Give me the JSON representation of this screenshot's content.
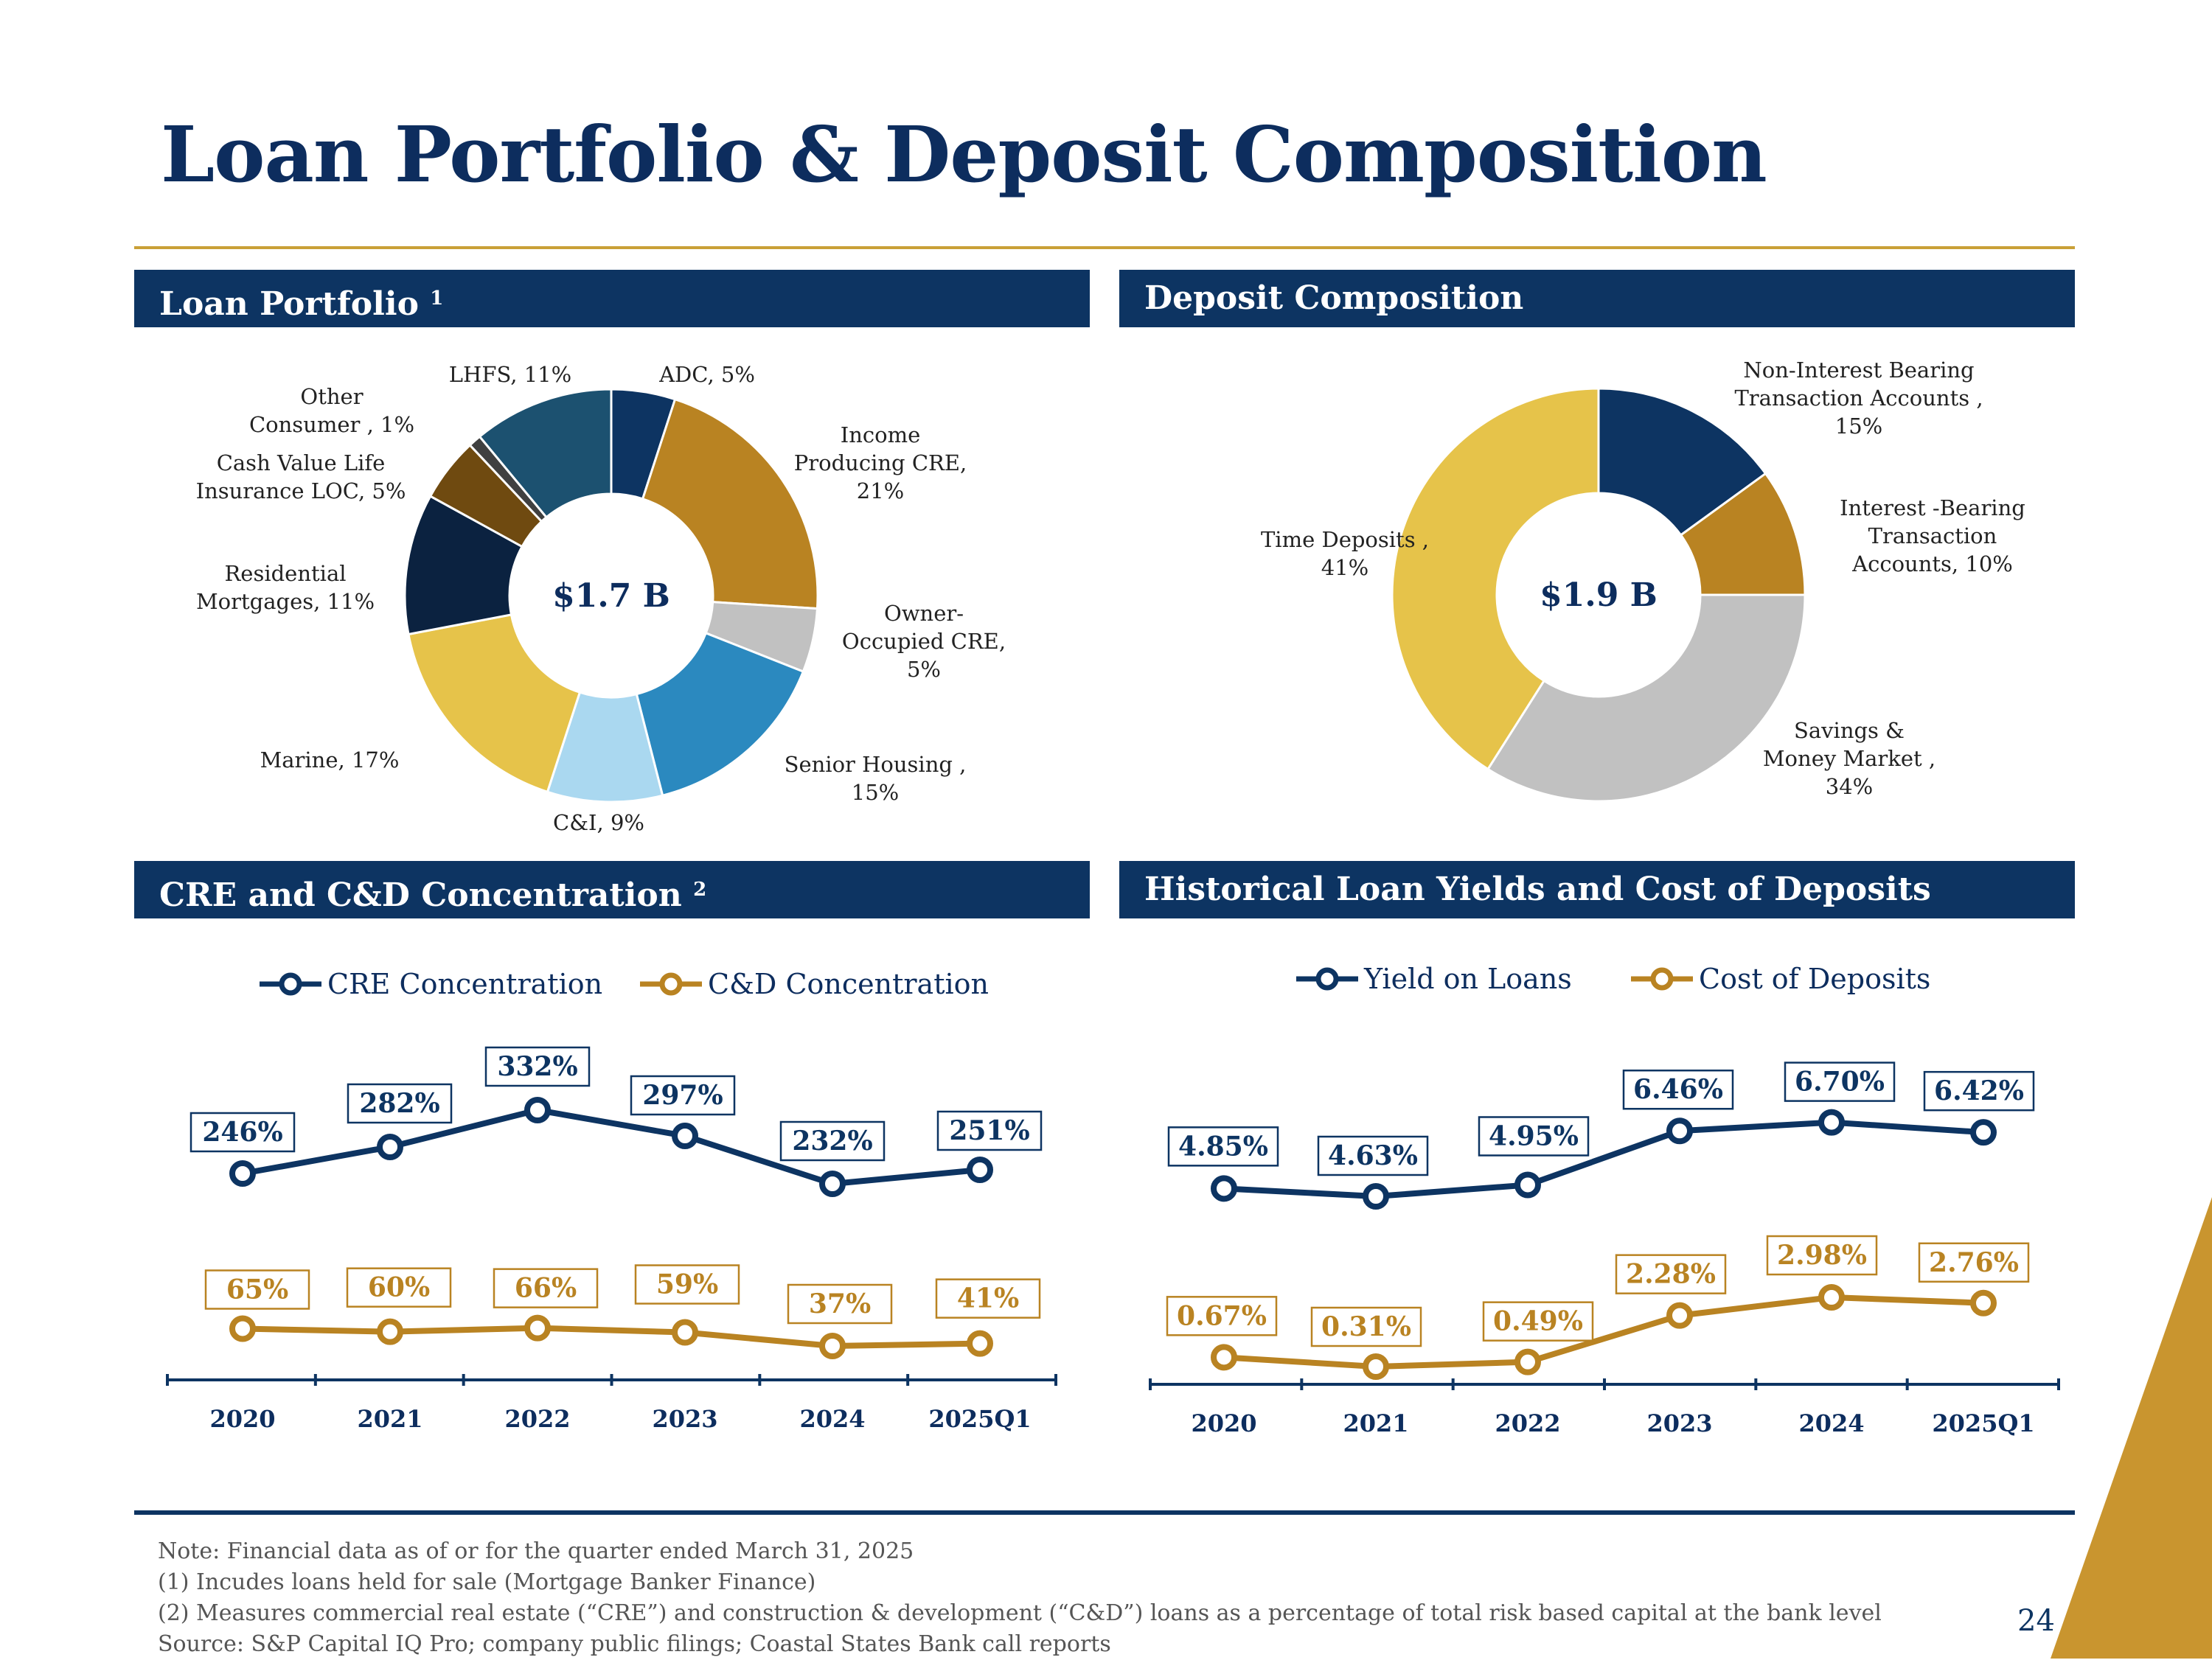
{
  "title": "Loan Portfolio & Deposit Composition",
  "panels": {
    "loan_portfolio": "Loan Portfolio",
    "loan_portfolio_note": "1",
    "deposit_composition": "Deposit Composition",
    "cre_concentration": "CRE and C&D Concentration",
    "cre_concentration_note": "2",
    "historical_yields": "Historical Loan Yields and Cost of Deposits"
  },
  "colors": {
    "navy": "#0d3462",
    "gold": "#c9a037",
    "header": "#0d3462"
  },
  "chart_data": [
    {
      "id": "loan_donut",
      "type": "pie",
      "title": "Loan Portfolio",
      "center_label": "$1.7 B",
      "slices": [
        {
          "name": "ADC",
          "value": 5,
          "label": [
            "ADC, 5%"
          ],
          "color": "#0d3462"
        },
        {
          "name": "Income Producing CRE",
          "value": 21,
          "label": [
            "Income",
            "Producing CRE,",
            "21%"
          ],
          "color": "#b98322"
        },
        {
          "name": "Owner-Occupied CRE",
          "value": 5,
          "label": [
            "Owner-",
            "Occupied CRE,",
            "5%"
          ],
          "color": "#c1c1c1"
        },
        {
          "name": "Senior Housing",
          "value": 15,
          "label": [
            "Senior Housing ,",
            "15%"
          ],
          "color": "#2b89bf"
        },
        {
          "name": "C&I",
          "value": 9,
          "label": [
            "C&I, 9%"
          ],
          "color": "#aad8f0"
        },
        {
          "name": "Marine",
          "value": 17,
          "label": [
            "Marine, 17%"
          ],
          "color": "#e6c34a"
        },
        {
          "name": "Residential Mortgages",
          "value": 11,
          "label": [
            "Residential",
            "Mortgages, 11%"
          ],
          "color": "#0b2240"
        },
        {
          "name": "Cash Value Life Insurance LOC",
          "value": 5,
          "label": [
            "Cash Value Life",
            "Insurance LOC, 5%"
          ],
          "color": "#6f4a10"
        },
        {
          "name": "Other Consumer",
          "value": 1,
          "label": [
            "Other",
            "Consumer , 1%"
          ],
          "color": "#404040"
        },
        {
          "name": "LHFS",
          "value": 11,
          "label": [
            "LHFS, 11%"
          ],
          "color": "#1c5170"
        }
      ]
    },
    {
      "id": "deposit_donut",
      "type": "pie",
      "title": "Deposit Composition",
      "center_label": "$1.9 B",
      "slices": [
        {
          "name": "Non-Interest Bearing Transaction Accounts",
          "value": 15,
          "label": [
            "Non-Interest Bearing",
            "Transaction Accounts ,",
            "15%"
          ],
          "color": "#0d3462"
        },
        {
          "name": "Interest-Bearing Transaction Accounts",
          "value": 10,
          "label": [
            "Interest -Bearing",
            "Transaction",
            "Accounts, 10%"
          ],
          "color": "#b98322"
        },
        {
          "name": "Savings & Money Market",
          "value": 34,
          "label": [
            "Savings &",
            "Money Market ,",
            "34%"
          ],
          "color": "#c1c1c1"
        },
        {
          "name": "Time Deposits",
          "value": 41,
          "label": [
            "Time Deposits ,",
            "41%"
          ],
          "color": "#e6c34a"
        }
      ]
    },
    {
      "id": "concentration_line",
      "type": "line",
      "title": "CRE and C&D Concentration",
      "categories": [
        "2020",
        "2021",
        "2022",
        "2023",
        "2024",
        "2025Q1"
      ],
      "series": [
        {
          "name": "CRE Concentration",
          "values": [
            246,
            282,
            332,
            297,
            232,
            251
          ],
          "labels": [
            "246%",
            "282%",
            "332%",
            "297%",
            "232%",
            "251%"
          ],
          "color": "#0d3462"
        },
        {
          "name": "C&D Concentration",
          "values": [
            65,
            60,
            66,
            59,
            37,
            41
          ],
          "labels": [
            "65%",
            "60%",
            "66%",
            "59%",
            "37%",
            "41%"
          ],
          "color": "#b98322"
        }
      ],
      "legend": "top"
    },
    {
      "id": "yields_line",
      "type": "line",
      "title": "Historical Loan Yields and Cost of Deposits",
      "categories": [
        "2020",
        "2021",
        "2022",
        "2023",
        "2024",
        "2025Q1"
      ],
      "series": [
        {
          "name": "Yield on Loans",
          "values": [
            4.85,
            4.63,
            4.95,
            6.46,
            6.7,
            6.42
          ],
          "labels": [
            "4.85%",
            "4.63%",
            "4.95%",
            "6.46%",
            "6.70%",
            "6.42%"
          ],
          "color": "#0d3462"
        },
        {
          "name": "Cost of Deposits",
          "values": [
            0.67,
            0.31,
            0.49,
            2.28,
            2.98,
            2.76
          ],
          "labels": [
            "0.67%",
            "0.31%",
            "0.49%",
            "2.28%",
            "2.98%",
            "2.76%"
          ],
          "color": "#b98322"
        }
      ],
      "legend": "top"
    }
  ],
  "notes": [
    "Note:  Financial data as of or for the quarter ended March 31, 2025",
    "(1)    Incudes loans held for sale (Mortgage Banker Finance)",
    "(2)    Measures commercial real estate (“CRE”) and construction & development (“C&D”) loans as a percentage of total risk based capital at the bank level",
    "Source:  S&P Capital IQ Pro; company public filings; Coastal States Bank call reports"
  ],
  "page_number": "24"
}
